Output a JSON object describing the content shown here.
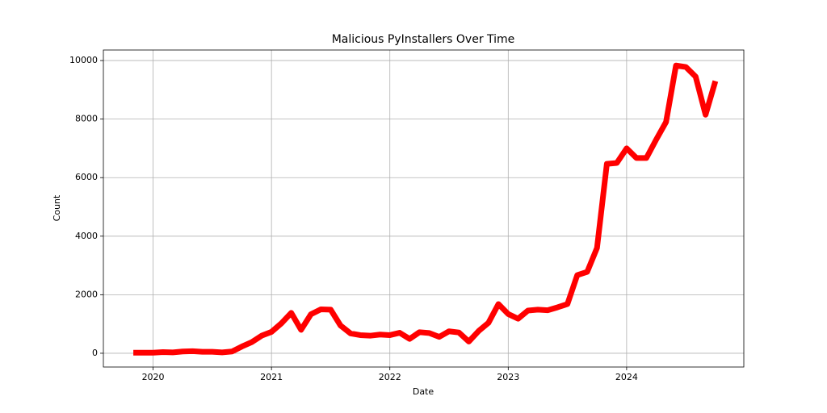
{
  "chart_data": {
    "type": "line",
    "title": "Malicious PyInstallers Over Time",
    "x_label": "Date",
    "y_label": "Count",
    "x": [
      2019.833,
      2019.917,
      2020,
      2020.083,
      2020.167,
      2020.25,
      2020.333,
      2020.417,
      2020.5,
      2020.583,
      2020.667,
      2020.75,
      2020.833,
      2020.917,
      2021,
      2021.083,
      2021.167,
      2021.25,
      2021.333,
      2021.417,
      2021.5,
      2021.583,
      2021.667,
      2021.75,
      2021.833,
      2021.917,
      2022,
      2022.083,
      2022.167,
      2022.25,
      2022.333,
      2022.417,
      2022.5,
      2022.583,
      2022.667,
      2022.75,
      2022.833,
      2022.917,
      2023,
      2023.083,
      2023.167,
      2023.25,
      2023.333,
      2023.417,
      2023.5,
      2023.583,
      2023.667,
      2023.75,
      2023.833,
      2023.917,
      2024,
      2024.083,
      2024.167,
      2024.25,
      2024.333,
      2024.417,
      2024.5,
      2024.583,
      2024.667,
      2024.75
    ],
    "values": [
      20,
      20,
      20,
      40,
      30,
      60,
      70,
      50,
      50,
      30,
      60,
      230,
      380,
      600,
      730,
      1020,
      1380,
      800,
      1330,
      1500,
      1490,
      950,
      680,
      620,
      600,
      640,
      620,
      700,
      490,
      720,
      690,
      560,
      750,
      710,
      400,
      760,
      1040,
      1680,
      1340,
      1180,
      1460,
      1490,
      1470,
      1570,
      1680,
      2670,
      2780,
      3600,
      6470,
      6500,
      7000,
      6670,
      6670,
      7300,
      7900,
      9830,
      9780,
      9450,
      8150,
      9300
    ],
    "color": "#ff0000",
    "xlim": [
      2019.58,
      2024.99
    ],
    "xticks": [
      2020,
      2021,
      2022,
      2023,
      2024
    ],
    "ylim": [
      -470,
      10360
    ],
    "yticks": [
      0,
      2000,
      4000,
      6000,
      8000,
      10000
    ],
    "grid": true
  }
}
